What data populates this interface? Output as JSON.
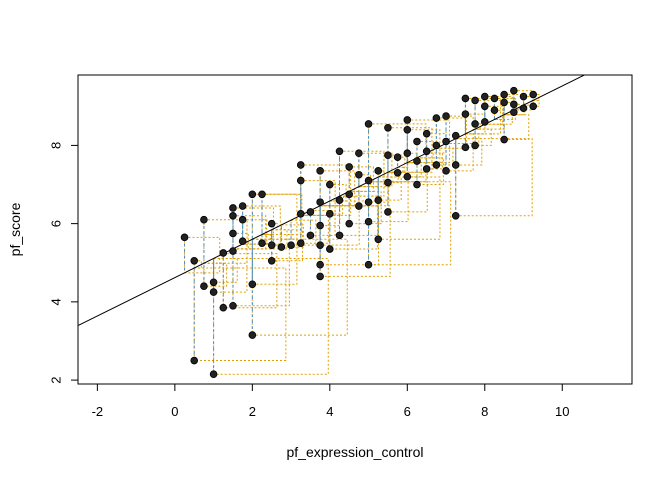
{
  "chart_data": {
    "type": "scatter",
    "title": "",
    "xlabel": "pf_expression_control",
    "ylabel": "pf_score",
    "xlim": [
      -2.5,
      11.8
    ],
    "ylim": [
      1.9,
      9.8
    ],
    "x_ticks": [
      -2,
      0,
      2,
      4,
      6,
      8,
      10
    ],
    "y_ticks": [
      2,
      4,
      6,
      8
    ],
    "grid": false,
    "legend": "none",
    "regression_line": {
      "intercept": 4.62,
      "slope": 0.49
    },
    "colors": {
      "points": "#000000",
      "residual_lines": "#4a90c8",
      "residual_squares": "#e0a000",
      "regression_line": "#000000",
      "axes": "#000000"
    },
    "points": [
      {
        "x": 0.25,
        "y": 5.65
      },
      {
        "x": 0.5,
        "y": 2.5
      },
      {
        "x": 0.5,
        "y": 5.05
      },
      {
        "x": 0.75,
        "y": 6.1
      },
      {
        "x": 0.75,
        "y": 4.4
      },
      {
        "x": 1.0,
        "y": 2.15
      },
      {
        "x": 1.0,
        "y": 4.25
      },
      {
        "x": 1.0,
        "y": 4.5
      },
      {
        "x": 1.25,
        "y": 5.25
      },
      {
        "x": 1.25,
        "y": 3.85
      },
      {
        "x": 1.5,
        "y": 3.9
      },
      {
        "x": 1.5,
        "y": 5.3
      },
      {
        "x": 1.5,
        "y": 5.75
      },
      {
        "x": 1.5,
        "y": 6.4
      },
      {
        "x": 1.5,
        "y": 6.2
      },
      {
        "x": 1.75,
        "y": 6.45
      },
      {
        "x": 1.75,
        "y": 6.1
      },
      {
        "x": 1.75,
        "y": 5.55
      },
      {
        "x": 2.0,
        "y": 3.15
      },
      {
        "x": 2.0,
        "y": 4.45
      },
      {
        "x": 2.0,
        "y": 6.75
      },
      {
        "x": 2.25,
        "y": 5.5
      },
      {
        "x": 2.25,
        "y": 6.75
      },
      {
        "x": 2.5,
        "y": 5.45
      },
      {
        "x": 2.5,
        "y": 5.05
      },
      {
        "x": 2.5,
        "y": 6.0
      },
      {
        "x": 2.75,
        "y": 5.4
      },
      {
        "x": 3.0,
        "y": 5.45
      },
      {
        "x": 3.25,
        "y": 5.5
      },
      {
        "x": 3.25,
        "y": 6.25
      },
      {
        "x": 3.25,
        "y": 7.1
      },
      {
        "x": 3.25,
        "y": 7.5
      },
      {
        "x": 3.5,
        "y": 5.7
      },
      {
        "x": 3.5,
        "y": 6.3
      },
      {
        "x": 3.75,
        "y": 4.65
      },
      {
        "x": 3.75,
        "y": 4.95
      },
      {
        "x": 3.75,
        "y": 5.45
      },
      {
        "x": 3.75,
        "y": 5.95
      },
      {
        "x": 3.75,
        "y": 6.55
      },
      {
        "x": 3.75,
        "y": 7.35
      },
      {
        "x": 4.0,
        "y": 5.35
      },
      {
        "x": 4.0,
        "y": 6.25
      },
      {
        "x": 4.0,
        "y": 7.0
      },
      {
        "x": 4.25,
        "y": 5.7
      },
      {
        "x": 4.25,
        "y": 6.6
      },
      {
        "x": 4.25,
        "y": 7.85
      },
      {
        "x": 4.5,
        "y": 6.0
      },
      {
        "x": 4.5,
        "y": 6.75
      },
      {
        "x": 4.5,
        "y": 7.45
      },
      {
        "x": 4.75,
        "y": 6.45
      },
      {
        "x": 4.75,
        "y": 7.25
      },
      {
        "x": 4.75,
        "y": 7.8
      },
      {
        "x": 5.0,
        "y": 4.95
      },
      {
        "x": 5.0,
        "y": 6.05
      },
      {
        "x": 5.0,
        "y": 6.55
      },
      {
        "x": 5.0,
        "y": 7.1
      },
      {
        "x": 5.0,
        "y": 8.55
      },
      {
        "x": 5.25,
        "y": 5.6
      },
      {
        "x": 5.25,
        "y": 6.6
      },
      {
        "x": 5.25,
        "y": 7.35
      },
      {
        "x": 5.5,
        "y": 6.3
      },
      {
        "x": 5.5,
        "y": 7.05
      },
      {
        "x": 5.5,
        "y": 7.75
      },
      {
        "x": 5.5,
        "y": 8.45
      },
      {
        "x": 5.75,
        "y": 7.3
      },
      {
        "x": 5.75,
        "y": 7.7
      },
      {
        "x": 6.0,
        "y": 7.2
      },
      {
        "x": 6.0,
        "y": 7.8
      },
      {
        "x": 6.0,
        "y": 8.4
      },
      {
        "x": 6.0,
        "y": 8.65
      },
      {
        "x": 6.25,
        "y": 7.0
      },
      {
        "x": 6.25,
        "y": 7.6
      },
      {
        "x": 6.25,
        "y": 8.1
      },
      {
        "x": 6.5,
        "y": 7.4
      },
      {
        "x": 6.5,
        "y": 7.85
      },
      {
        "x": 6.5,
        "y": 8.3
      },
      {
        "x": 6.75,
        "y": 7.5
      },
      {
        "x": 6.75,
        "y": 8.0
      },
      {
        "x": 6.75,
        "y": 8.7
      },
      {
        "x": 7.0,
        "y": 7.35
      },
      {
        "x": 7.0,
        "y": 8.1
      },
      {
        "x": 7.0,
        "y": 8.75
      },
      {
        "x": 7.25,
        "y": 6.2
      },
      {
        "x": 7.25,
        "y": 7.5
      },
      {
        "x": 7.25,
        "y": 8.25
      },
      {
        "x": 7.5,
        "y": 7.95
      },
      {
        "x": 7.5,
        "y": 8.8
      },
      {
        "x": 7.5,
        "y": 9.2
      },
      {
        "x": 7.75,
        "y": 8.0
      },
      {
        "x": 7.75,
        "y": 8.55
      },
      {
        "x": 7.75,
        "y": 9.15
      },
      {
        "x": 8.0,
        "y": 8.6
      },
      {
        "x": 8.0,
        "y": 9.0
      },
      {
        "x": 8.0,
        "y": 9.25
      },
      {
        "x": 8.25,
        "y": 8.9
      },
      {
        "x": 8.25,
        "y": 9.2
      },
      {
        "x": 8.5,
        "y": 8.15
      },
      {
        "x": 8.5,
        "y": 9.1
      },
      {
        "x": 8.5,
        "y": 9.3
      },
      {
        "x": 8.75,
        "y": 8.85
      },
      {
        "x": 8.75,
        "y": 9.05
      },
      {
        "x": 8.75,
        "y": 9.4
      },
      {
        "x": 9.0,
        "y": 8.95
      },
      {
        "x": 9.0,
        "y": 9.25
      },
      {
        "x": 9.25,
        "y": 9.0
      },
      {
        "x": 9.25,
        "y": 9.3
      }
    ]
  }
}
